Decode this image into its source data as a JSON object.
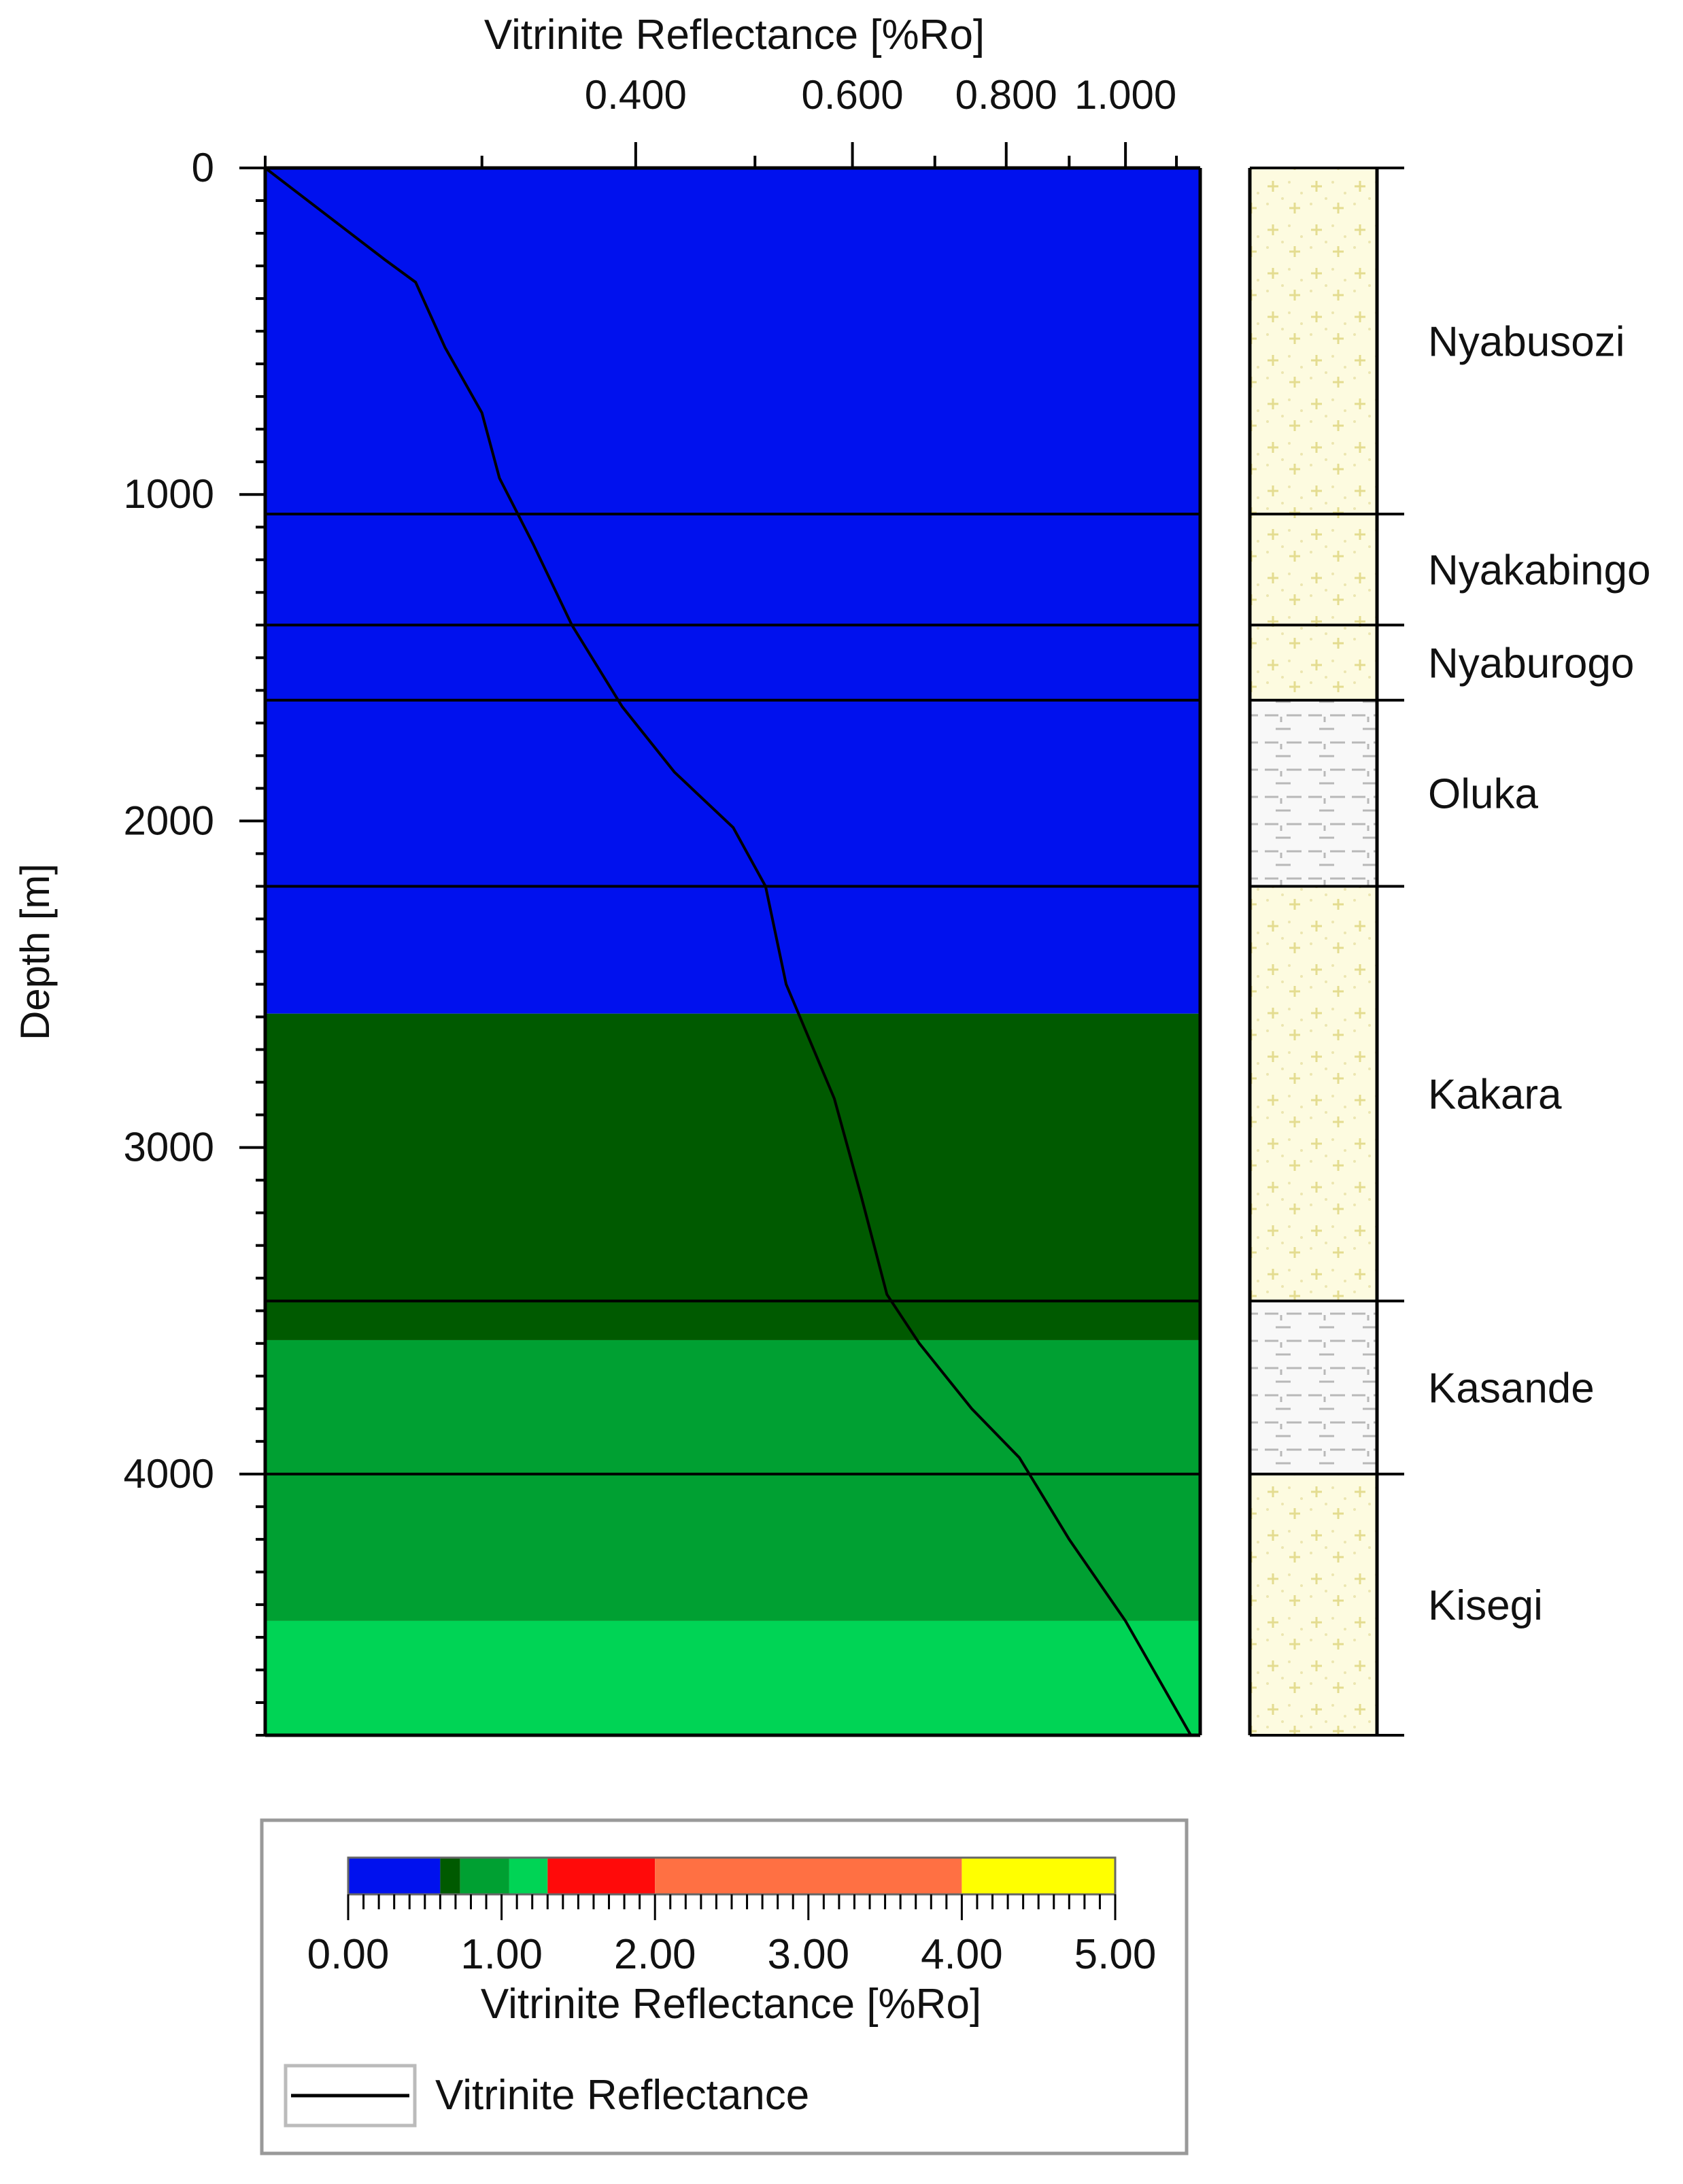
{
  "chart_data": {
    "type": "line",
    "title": "",
    "xlabel": "Vitrinite Reflectance [%Ro]",
    "ylabel": "Depth [m]",
    "x_scale": "log",
    "xlim": [
      0.2,
      1.15
    ],
    "ylim": [
      4800,
      0
    ],
    "x_ticks": [
      {
        "value": 0.4,
        "label": "0.400"
      },
      {
        "value": 0.6,
        "label": "0.600"
      },
      {
        "value": 0.8,
        "label": "0.800"
      },
      {
        "value": 1.0,
        "label": "1.000"
      }
    ],
    "y_ticks": [
      {
        "value": 0,
        "label": "0"
      },
      {
        "value": 1000,
        "label": "1000"
      },
      {
        "value": 2000,
        "label": "2000"
      },
      {
        "value": 3000,
        "label": "3000"
      },
      {
        "value": 4000,
        "label": "4000"
      }
    ],
    "series": [
      {
        "name": "Vitrinite Reflectance",
        "color": "#000000",
        "points": [
          {
            "x": 0.2,
            "y": 0
          },
          {
            "x": 0.25,
            "y": 280
          },
          {
            "x": 0.265,
            "y": 350
          },
          {
            "x": 0.28,
            "y": 550
          },
          {
            "x": 0.3,
            "y": 750
          },
          {
            "x": 0.31,
            "y": 950
          },
          {
            "x": 0.33,
            "y": 1150
          },
          {
            "x": 0.355,
            "y": 1400
          },
          {
            "x": 0.39,
            "y": 1650
          },
          {
            "x": 0.43,
            "y": 1850
          },
          {
            "x": 0.48,
            "y": 2020
          },
          {
            "x": 0.51,
            "y": 2200
          },
          {
            "x": 0.53,
            "y": 2500
          },
          {
            "x": 0.58,
            "y": 2850
          },
          {
            "x": 0.61,
            "y": 3150
          },
          {
            "x": 0.64,
            "y": 3450
          },
          {
            "x": 0.68,
            "y": 3600
          },
          {
            "x": 0.75,
            "y": 3800
          },
          {
            "x": 0.82,
            "y": 3950
          },
          {
            "x": 0.9,
            "y": 4200
          },
          {
            "x": 1.0,
            "y": 4450
          },
          {
            "x": 1.13,
            "y": 4800
          }
        ]
      }
    ],
    "background_bands": [
      {
        "top": 0,
        "bottom": 2590,
        "color": "#0011ee"
      },
      {
        "top": 2590,
        "bottom": 3590,
        "color": "#005a00"
      },
      {
        "top": 3590,
        "bottom": 4450,
        "color": "#00a032"
      },
      {
        "top": 4450,
        "bottom": 4800,
        "color": "#00d455"
      }
    ],
    "horizon_lines": [
      1060,
      1400,
      1630,
      2200,
      3470,
      4000
    ],
    "lithology": [
      {
        "name": "Nyabusozi",
        "top": 0,
        "bottom": 1060,
        "pattern": "sandstone"
      },
      {
        "name": "Nyakabingo",
        "top": 1060,
        "bottom": 1400,
        "pattern": "sandstone"
      },
      {
        "name": "Nyaburogo",
        "top": 1400,
        "bottom": 1630,
        "pattern": "sandstone"
      },
      {
        "name": "Oluka",
        "top": 1630,
        "bottom": 2200,
        "pattern": "shale"
      },
      {
        "name": "Kakara",
        "top": 2200,
        "bottom": 3470,
        "pattern": "sandstone"
      },
      {
        "name": "Kasande",
        "top": 3470,
        "bottom": 4000,
        "pattern": "shale"
      },
      {
        "name": "Kisegi",
        "top": 4000,
        "bottom": 4800,
        "pattern": "sandstone"
      }
    ],
    "colorbar": {
      "label": "Vitrinite Reflectance [%Ro]",
      "range": [
        0,
        5
      ],
      "tick_labels": [
        "0.00",
        "1.00",
        "2.00",
        "3.00",
        "4.00",
        "5.00"
      ],
      "segments": [
        {
          "from": 0.0,
          "to": 0.6,
          "color": "#0011ee"
        },
        {
          "from": 0.6,
          "to": 0.73,
          "color": "#005a00"
        },
        {
          "from": 0.73,
          "to": 1.05,
          "color": "#00a032"
        },
        {
          "from": 1.05,
          "to": 1.3,
          "color": "#00d455"
        },
        {
          "from": 1.3,
          "to": 2.0,
          "color": "#ff0a0a"
        },
        {
          "from": 2.0,
          "to": 4.0,
          "color": "#ff7043"
        },
        {
          "from": 4.0,
          "to": 5.0,
          "color": "#ffff00"
        }
      ]
    },
    "legend": {
      "position": "bottom",
      "entries": [
        {
          "label": "Vitrinite Reflectance",
          "color": "#000000"
        }
      ]
    }
  }
}
